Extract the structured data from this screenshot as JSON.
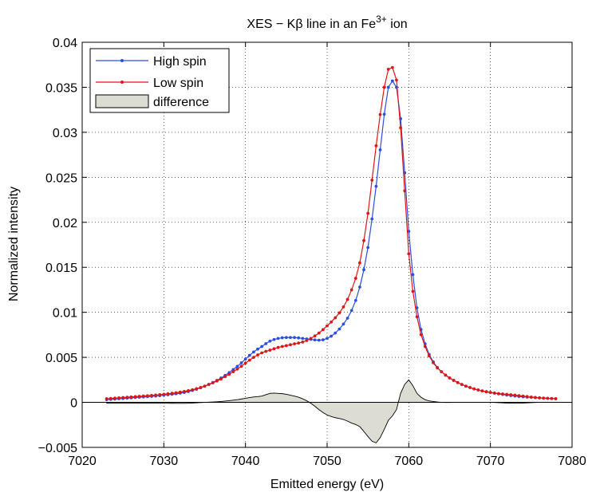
{
  "chart_data": {
    "type": "line",
    "title_main": "XES − Kβ line in an Fe",
    "title_sup": "3+",
    "title_end": " ion",
    "xlabel": "Emitted energy  (eV)",
    "ylabel": "Normalized intensity",
    "xlim": [
      7020,
      7080
    ],
    "ylim": [
      -0.005,
      0.04
    ],
    "xticks": [
      7020,
      7030,
      7040,
      7050,
      7060,
      7070,
      7080
    ],
    "xtick_labels": [
      "7020",
      "7030",
      "7040",
      "7050",
      "7060",
      "7070",
      "7080"
    ],
    "yticks": [
      -0.005,
      0,
      0.005,
      0.01,
      0.015,
      0.02,
      0.025,
      0.03,
      0.035,
      0.04
    ],
    "ytick_labels": [
      "−0.005",
      "0",
      "0.005",
      "0.01",
      "0.015",
      "0.02",
      "0.025",
      "0.03",
      "0.035",
      "0.04"
    ],
    "grid": "dotted",
    "legend_position": "top-left",
    "x_start": 7023,
    "x_end": 7078,
    "x_step": 0.5,
    "series": [
      {
        "name": "High spin",
        "color": "#2b4fe0",
        "marker": "dot",
        "knots": [
          [
            7023,
            0.0003
          ],
          [
            7026,
            0.0005
          ],
          [
            7030,
            0.0008
          ],
          [
            7033,
            0.0012
          ],
          [
            7035,
            0.0018
          ],
          [
            7037,
            0.0027
          ],
          [
            7039,
            0.004
          ],
          [
            7041,
            0.0056
          ],
          [
            7042,
            0.0062
          ],
          [
            7043,
            0.0068
          ],
          [
            7044,
            0.0071
          ],
          [
            7045,
            0.0072
          ],
          [
            7046,
            0.0072
          ],
          [
            7047,
            0.0071
          ],
          [
            7048,
            0.007
          ],
          [
            7049,
            0.0069
          ],
          [
            7050,
            0.0071
          ],
          [
            7051,
            0.0077
          ],
          [
            7052,
            0.0087
          ],
          [
            7053,
            0.0102
          ],
          [
            7054,
            0.0128
          ],
          [
            7055,
            0.0172
          ],
          [
            7056,
            0.024
          ],
          [
            7057,
            0.032
          ],
          [
            7057.5,
            0.035
          ],
          [
            7058,
            0.0357
          ],
          [
            7058.5,
            0.035
          ],
          [
            7059,
            0.0315
          ],
          [
            7059.5,
            0.0255
          ],
          [
            7060,
            0.019
          ],
          [
            7061,
            0.0105
          ],
          [
            7062,
            0.0065
          ],
          [
            7063,
            0.0045
          ],
          [
            7064,
            0.0034
          ],
          [
            7066,
            0.0022
          ],
          [
            7068,
            0.0015
          ],
          [
            7070,
            0.0011
          ],
          [
            7073,
            0.0007
          ],
          [
            7076,
            0.0005
          ],
          [
            7078,
            0.0004
          ]
        ]
      },
      {
        "name": "Low spin",
        "color": "#e01515",
        "marker": "dot",
        "knots": [
          [
            7023,
            0.0004
          ],
          [
            7026,
            0.0006
          ],
          [
            7030,
            0.0009
          ],
          [
            7033,
            0.0013
          ],
          [
            7035,
            0.0018
          ],
          [
            7037,
            0.0026
          ],
          [
            7039,
            0.0037
          ],
          [
            7041,
            0.005
          ],
          [
            7042,
            0.0055
          ],
          [
            7043,
            0.0058
          ],
          [
            7044,
            0.0061
          ],
          [
            7045,
            0.0063
          ],
          [
            7046,
            0.0065
          ],
          [
            7047,
            0.0067
          ],
          [
            7048,
            0.0071
          ],
          [
            7049,
            0.0077
          ],
          [
            7050,
            0.0085
          ],
          [
            7051,
            0.0094
          ],
          [
            7052,
            0.0106
          ],
          [
            7053,
            0.0125
          ],
          [
            7054,
            0.0155
          ],
          [
            7055,
            0.021
          ],
          [
            7056,
            0.0285
          ],
          [
            7057,
            0.035
          ],
          [
            7057.5,
            0.037
          ],
          [
            7058,
            0.0372
          ],
          [
            7058.5,
            0.0358
          ],
          [
            7059,
            0.0305
          ],
          [
            7059.5,
            0.0235
          ],
          [
            7060,
            0.0165
          ],
          [
            7061,
            0.0095
          ],
          [
            7062,
            0.0062
          ],
          [
            7063,
            0.0044
          ],
          [
            7064,
            0.0034
          ],
          [
            7066,
            0.0022
          ],
          [
            7068,
            0.0015
          ],
          [
            7070,
            0.0011
          ],
          [
            7073,
            0.0008
          ],
          [
            7076,
            0.0005
          ],
          [
            7078,
            0.0004
          ]
        ]
      },
      {
        "name": "difference",
        "type": "area",
        "fill": "#dcdcd2",
        "stroke": "#000000",
        "definition": "High spin − Low spin"
      }
    ]
  }
}
